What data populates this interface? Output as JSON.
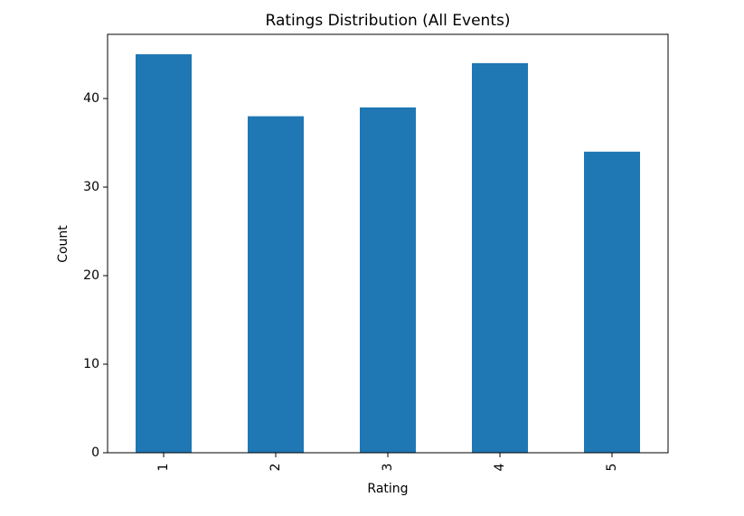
{
  "chart_data": {
    "type": "bar",
    "title": "Ratings Distribution (All Events)",
    "xlabel": "Rating",
    "ylabel": "Count",
    "categories": [
      "1",
      "2",
      "3",
      "4",
      "5"
    ],
    "values": [
      45,
      38,
      39,
      44,
      34
    ],
    "ylim": [
      0,
      47.25
    ],
    "yticks": [
      0,
      10,
      20,
      30,
      40
    ],
    "grid": false,
    "legend": "none",
    "colors": {
      "bar": "#1f77b4",
      "axis": "#000000",
      "background": "#ffffff"
    }
  }
}
